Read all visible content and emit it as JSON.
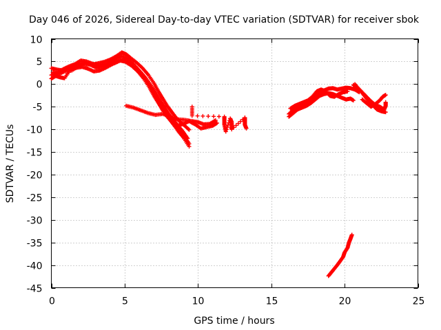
{
  "chart_data": {
    "type": "scatter",
    "title": "Day 046 of 2026, Sidereal Day-to-day VTEC variation (SDTVAR) for receiver sbok",
    "xlabel": "GPS time / hours",
    "ylabel": "SDTVAR / TECUs",
    "xlim": [
      0,
      25
    ],
    "ylim": [
      -45,
      10
    ],
    "xticks": [
      "0",
      "5",
      "10",
      "15",
      "20",
      "25"
    ],
    "yticks": [
      "10",
      "5",
      "0",
      "-5",
      "-10",
      "-15",
      "-20",
      "-25",
      "-30",
      "-35",
      "-40",
      "-45"
    ],
    "xtick_values": [
      0,
      5,
      10,
      15,
      20,
      25
    ],
    "ytick_values": [
      10,
      5,
      0,
      -5,
      -10,
      -15,
      -20,
      -25,
      -30,
      -35,
      -40,
      -45
    ],
    "grid": true,
    "marker": "+",
    "color": "#ff0000",
    "series": [
      {
        "name": "track-a",
        "points": [
          [
            0,
            3.5
          ],
          [
            0.4,
            3.2
          ],
          [
            0.8,
            3.0
          ],
          [
            1.2,
            3.6
          ],
          [
            1.6,
            4.2
          ],
          [
            2.0,
            4.6
          ],
          [
            2.4,
            4.4
          ],
          [
            2.8,
            4.3
          ],
          [
            3.2,
            4.6
          ],
          [
            3.6,
            4.9
          ],
          [
            4.0,
            5.4
          ],
          [
            4.4,
            6.1
          ],
          [
            4.8,
            7.0
          ],
          [
            5.1,
            6.6
          ],
          [
            5.4,
            5.8
          ],
          [
            5.8,
            4.8
          ],
          [
            6.2,
            3.6
          ],
          [
            6.6,
            2.1
          ],
          [
            7.0,
            0.2
          ],
          [
            7.3,
            -1.6
          ],
          [
            7.6,
            -3.2
          ],
          [
            7.9,
            -4.8
          ],
          [
            8.2,
            -6.1
          ],
          [
            8.5,
            -7.4
          ],
          [
            8.8,
            -8.4
          ],
          [
            9.1,
            -9.2
          ],
          [
            9.4,
            -10.1
          ]
        ]
      },
      {
        "name": "track-b",
        "points": [
          [
            0,
            2.0
          ],
          [
            0.4,
            2.5
          ],
          [
            0.8,
            3.3
          ],
          [
            1.2,
            3.9
          ],
          [
            1.6,
            4.4
          ],
          [
            2.0,
            5.2
          ],
          [
            2.4,
            5.0
          ],
          [
            2.8,
            4.5
          ],
          [
            3.2,
            4.2
          ],
          [
            3.6,
            4.4
          ],
          [
            4.0,
            4.8
          ],
          [
            4.4,
            5.6
          ],
          [
            4.8,
            6.2
          ],
          [
            5.2,
            5.6
          ],
          [
            5.6,
            4.4
          ],
          [
            6.0,
            3.0
          ],
          [
            6.4,
            1.5
          ],
          [
            6.8,
            -0.3
          ],
          [
            7.2,
            -2.2
          ],
          [
            7.5,
            -4.0
          ],
          [
            7.8,
            -5.5
          ],
          [
            8.1,
            -7.0
          ],
          [
            8.4,
            -8.2
          ],
          [
            8.7,
            -9.4
          ],
          [
            9.0,
            -10.6
          ],
          [
            9.3,
            -12.0
          ]
        ]
      },
      {
        "name": "track-c",
        "points": [
          [
            0,
            1.2
          ],
          [
            0.3,
            1.8
          ],
          [
            0.6,
            1.5
          ],
          [
            0.9,
            1.3
          ],
          [
            1.3,
            3.2
          ],
          [
            1.7,
            3.6
          ],
          [
            2.1,
            3.8
          ],
          [
            2.5,
            3.4
          ],
          [
            2.9,
            2.8
          ],
          [
            3.3,
            3.0
          ],
          [
            3.7,
            3.6
          ],
          [
            4.1,
            4.3
          ],
          [
            4.5,
            5.0
          ],
          [
            4.9,
            5.4
          ],
          [
            5.3,
            4.6
          ],
          [
            5.7,
            3.4
          ],
          [
            6.1,
            2.2
          ],
          [
            6.5,
            0.8
          ],
          [
            6.9,
            -1.2
          ],
          [
            7.2,
            -2.8
          ],
          [
            7.5,
            -4.6
          ],
          [
            7.8,
            -6.2
          ],
          [
            8.1,
            -7.8
          ],
          [
            8.4,
            -9.2
          ],
          [
            8.7,
            -10.6
          ],
          [
            9.0,
            -11.8
          ],
          [
            9.4,
            -13.8
          ]
        ]
      },
      {
        "name": "track-d",
        "points": [
          [
            0.1,
            2.6
          ],
          [
            0.5,
            2.2
          ],
          [
            0.9,
            2.8
          ],
          [
            1.4,
            3.0
          ],
          [
            1.9,
            4.0
          ],
          [
            2.3,
            4.8
          ],
          [
            2.7,
            4.2
          ],
          [
            3.1,
            3.6
          ],
          [
            3.5,
            3.8
          ],
          [
            3.9,
            4.2
          ],
          [
            4.3,
            4.6
          ],
          [
            4.7,
            5.2
          ],
          [
            5.0,
            5.0
          ],
          [
            5.5,
            4.0
          ],
          [
            5.9,
            2.8
          ],
          [
            6.3,
            1.2
          ],
          [
            6.7,
            -0.8
          ],
          [
            7.0,
            -2.6
          ],
          [
            7.3,
            -4.2
          ],
          [
            7.6,
            -5.8
          ],
          [
            7.9,
            -7.2
          ],
          [
            8.2,
            -8.4
          ],
          [
            8.5,
            -9.6
          ],
          [
            8.8,
            -10.8
          ],
          [
            9.1,
            -11.6
          ],
          [
            9.4,
            -13.2
          ]
        ]
      },
      {
        "name": "track-e",
        "points": [
          [
            5.1,
            -4.8
          ],
          [
            5.6,
            -5.2
          ],
          [
            6.1,
            -5.8
          ],
          [
            6.6,
            -6.4
          ],
          [
            7.1,
            -6.8
          ],
          [
            7.6,
            -6.6
          ],
          [
            8.1,
            -7.2
          ],
          [
            8.6,
            -7.8
          ],
          [
            9.1,
            -7.9
          ],
          [
            9.6,
            -8.2
          ],
          [
            10.0,
            -8.4
          ],
          [
            10.4,
            -8.9
          ],
          [
            10.8,
            -8.8
          ],
          [
            11.2,
            -8.0
          ]
        ]
      },
      {
        "name": "track-f",
        "points": [
          [
            8.6,
            -9.2
          ],
          [
            9.0,
            -8.8
          ],
          [
            9.4,
            -8.2
          ],
          [
            9.8,
            -8.9
          ],
          [
            10.2,
            -9.8
          ],
          [
            10.6,
            -9.5
          ],
          [
            11.0,
            -9.2
          ],
          [
            11.3,
            -8.6
          ]
        ]
      },
      {
        "name": "scatter-near-10h",
        "points": [
          [
            9.6,
            -5.0
          ],
          [
            9.6,
            -7.0
          ],
          [
            11.8,
            -7.2
          ],
          [
            11.8,
            -8.0
          ],
          [
            11.8,
            -9.0
          ],
          [
            11.9,
            -10.5
          ],
          [
            12.2,
            -7.6
          ],
          [
            12.3,
            -8.4
          ],
          [
            12.3,
            -9.6
          ],
          [
            12.3,
            -10.0
          ],
          [
            13.2,
            -7.4
          ],
          [
            13.2,
            -8.2
          ],
          [
            13.2,
            -9.0
          ],
          [
            13.3,
            -9.8
          ]
        ]
      },
      {
        "name": "track-g",
        "points": [
          [
            16.2,
            -6.6
          ],
          [
            16.5,
            -5.8
          ],
          [
            16.8,
            -5.0
          ],
          [
            17.1,
            -4.6
          ],
          [
            17.4,
            -4.2
          ],
          [
            17.7,
            -3.6
          ],
          [
            18.0,
            -2.8
          ],
          [
            18.3,
            -2.0
          ],
          [
            18.6,
            -1.4
          ],
          [
            18.9,
            -1.0
          ],
          [
            19.2,
            -0.9
          ],
          [
            19.5,
            -1.2
          ],
          [
            19.8,
            -1.0
          ],
          [
            20.1,
            -0.8
          ],
          [
            20.4,
            -0.9
          ],
          [
            20.7,
            -1.2
          ],
          [
            21.0,
            -1.8
          ]
        ]
      },
      {
        "name": "track-h",
        "points": [
          [
            16.2,
            -7.2
          ],
          [
            16.5,
            -6.4
          ],
          [
            16.8,
            -5.6
          ],
          [
            17.1,
            -5.2
          ],
          [
            17.4,
            -4.8
          ],
          [
            17.7,
            -4.2
          ],
          [
            18.0,
            -3.4
          ],
          [
            18.3,
            -2.6
          ],
          [
            18.6,
            -2.2
          ],
          [
            18.9,
            -2.0
          ],
          [
            19.2,
            -2.2
          ],
          [
            19.5,
            -2.6
          ],
          [
            19.8,
            -3.0
          ],
          [
            20.1,
            -3.4
          ],
          [
            20.4,
            -3.2
          ],
          [
            20.6,
            -3.6
          ]
        ]
      },
      {
        "name": "track-i",
        "points": [
          [
            16.3,
            -5.4
          ],
          [
            16.6,
            -4.8
          ],
          [
            16.9,
            -4.4
          ],
          [
            17.2,
            -4.0
          ],
          [
            17.5,
            -3.6
          ],
          [
            17.8,
            -2.8
          ],
          [
            18.1,
            -1.6
          ],
          [
            18.4,
            -1.2
          ],
          [
            18.7,
            -1.6
          ],
          [
            19.0,
            -2.6
          ],
          [
            19.3,
            -2.8
          ],
          [
            19.6,
            -2.2
          ],
          [
            19.9,
            -1.8
          ],
          [
            20.2,
            -1.6
          ]
        ]
      },
      {
        "name": "track-j",
        "points": [
          [
            20.6,
            -0.2
          ],
          [
            20.9,
            -0.8
          ],
          [
            21.2,
            -1.8
          ],
          [
            21.5,
            -2.8
          ],
          [
            21.8,
            -3.8
          ],
          [
            22.1,
            -4.6
          ],
          [
            22.4,
            -5.0
          ],
          [
            22.7,
            -5.6
          ],
          [
            22.8,
            -4.8
          ],
          [
            22.8,
            -4.0
          ]
        ]
      },
      {
        "name": "track-k",
        "points": [
          [
            20.7,
            0
          ],
          [
            21.0,
            -1.2
          ],
          [
            21.3,
            -2.4
          ],
          [
            21.6,
            -3.6
          ],
          [
            21.9,
            -4.6
          ],
          [
            22.2,
            -5.6
          ],
          [
            22.5,
            -6.0
          ],
          [
            22.8,
            -6.2
          ]
        ]
      },
      {
        "name": "track-l",
        "points": [
          [
            21.2,
            -3.4
          ],
          [
            21.5,
            -4.2
          ],
          [
            21.8,
            -5.0
          ],
          [
            22.1,
            -4.4
          ],
          [
            22.4,
            -3.6
          ],
          [
            22.6,
            -2.8
          ],
          [
            22.8,
            -2.4
          ]
        ]
      },
      {
        "name": "track-m",
        "points": [
          [
            18.9,
            -42.4
          ],
          [
            19.1,
            -41.6
          ],
          [
            19.3,
            -40.8
          ],
          [
            19.5,
            -40.0
          ],
          [
            19.7,
            -39.1
          ],
          [
            19.9,
            -38.2
          ],
          [
            20.0,
            -37.2
          ],
          [
            20.2,
            -36.2
          ],
          [
            20.3,
            -35.0
          ],
          [
            20.4,
            -34.2
          ],
          [
            20.5,
            -33.3
          ]
        ]
      }
    ]
  }
}
